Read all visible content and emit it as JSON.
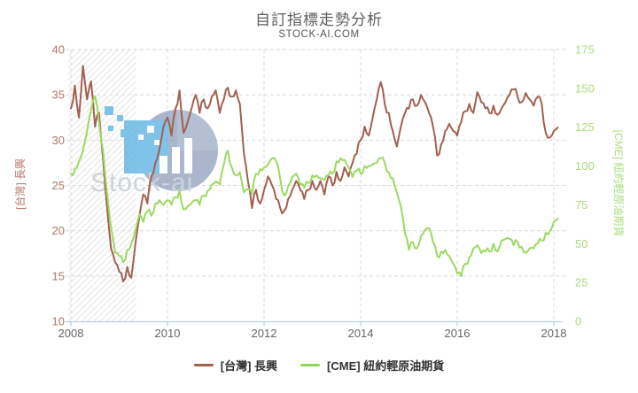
{
  "page": {
    "title": "自訂指標走勢分析",
    "subtitle": "STOCK-AI.COM"
  },
  "chart_data": {
    "type": "line",
    "title": "自訂指標走勢分析",
    "subtitle": "STOCK-AI.COM",
    "legend_position": "bottom",
    "grid": {
      "color": "#d9d9d9",
      "dash": "4,3",
      "on": true
    },
    "x_axis": {
      "ticks": [
        2008,
        2010,
        2012,
        2014,
        2016,
        2018
      ],
      "range": [
        2008,
        2018.2
      ],
      "line_color": "#aac6e6",
      "label_color": "#666666"
    },
    "left_axis": {
      "title": "[台灣] 長興",
      "ticks": [
        10,
        15,
        20,
        25,
        30,
        35,
        40
      ],
      "range": [
        10,
        40
      ],
      "color": "#b0766a"
    },
    "right_axis": {
      "title": "[CME] 紐約輕原油期貨",
      "ticks": [
        0,
        25,
        50,
        75,
        100,
        125,
        150,
        175
      ],
      "range": [
        0,
        175
      ],
      "color": "#a8dd7c"
    },
    "recession_band": {
      "from": 2007.95,
      "to": 2009.35,
      "style": "diagonal-hatch",
      "line_color": "#e3e3e3"
    },
    "watermark": {
      "text": "Stock-ai"
    },
    "series": [
      {
        "name": "[台灣] 長興",
        "axis": "left",
        "color": "#a2604f",
        "start": 2008.0,
        "interval_years": 0.083333,
        "jitter": 0.45,
        "values": [
          33.5,
          36.0,
          32.5,
          38.2,
          34.5,
          36.5,
          31.5,
          33.0,
          28.0,
          22.5,
          18.0,
          16.5,
          15.5,
          14.4,
          16.0,
          14.8,
          18.5,
          21.5,
          24.0,
          23.0,
          26.0,
          27.5,
          29.0,
          31.5,
          32.5,
          30.5,
          33.5,
          35.5,
          30.8,
          32.0,
          33.5,
          35.0,
          33.0,
          34.5,
          33.5,
          34.8,
          35.5,
          33.0,
          34.5,
          35.8,
          34.8,
          35.5,
          34.0,
          28.5,
          25.5,
          22.5,
          24.5,
          23.0,
          24.5,
          26.0,
          25.0,
          23.5,
          22.5,
          22.2,
          23.5,
          24.5,
          25.5,
          24.5,
          23.5,
          24.5,
          25.5,
          24.5,
          25.5,
          24.0,
          26.0,
          25.0,
          26.5,
          25.5,
          27.0,
          26.0,
          27.5,
          28.5,
          30.0,
          31.5,
          30.5,
          32.5,
          34.5,
          36.4,
          34.0,
          33.0,
          31.0,
          29.3,
          31.5,
          33.0,
          33.5,
          34.5,
          33.8,
          35.0,
          34.2,
          33.0,
          31.5,
          28.3,
          29.5,
          31.0,
          31.8,
          31.0,
          30.5,
          32.0,
          33.2,
          34.0,
          33.0,
          35.3,
          34.2,
          33.5,
          33.0,
          33.8,
          32.8,
          33.5,
          34.2,
          35.0,
          35.6,
          34.8,
          34.2,
          35.2,
          34.5,
          33.8,
          34.8,
          34.0,
          30.8,
          30.3,
          31.0,
          31.4
        ]
      },
      {
        "name": "[CME] 紐約輕原油期貨",
        "axis": "right",
        "color": "#9bda62",
        "start": 2008.0,
        "interval_years": 0.083333,
        "jitter": 2.4,
        "values": [
          95,
          98,
          103,
          110,
          122,
          136,
          145,
          128,
          110,
          82,
          60,
          44,
          42,
          38,
          46,
          50,
          58,
          69,
          64,
          71,
          68,
          76,
          78,
          75,
          78,
          75,
          80,
          84,
          72,
          74,
          76,
          78,
          75,
          81,
          84,
          88,
          90,
          88,
          101,
          110,
          99,
          94,
          96,
          83,
          85,
          82,
          95,
          98,
          99,
          101,
          105,
          103,
          92,
          81,
          87,
          93,
          95,
          88,
          86,
          89,
          94,
          94,
          92,
          91,
          94,
          95,
          103,
          105,
          104,
          99,
          93,
          97,
          95,
          100,
          100,
          101,
          102,
          105,
          102,
          96,
          92,
          83,
          74,
          57,
          46,
          51,
          47,
          55,
          59,
          60,
          51,
          42,
          45,
          46,
          42,
          37,
          31,
          29,
          37,
          41,
          47,
          49,
          44,
          45,
          45,
          50,
          45,
          52,
          53,
          53,
          49,
          51,
          48,
          44,
          47,
          47,
          50,
          52,
          57,
          58,
          64,
          66
        ]
      }
    ]
  }
}
